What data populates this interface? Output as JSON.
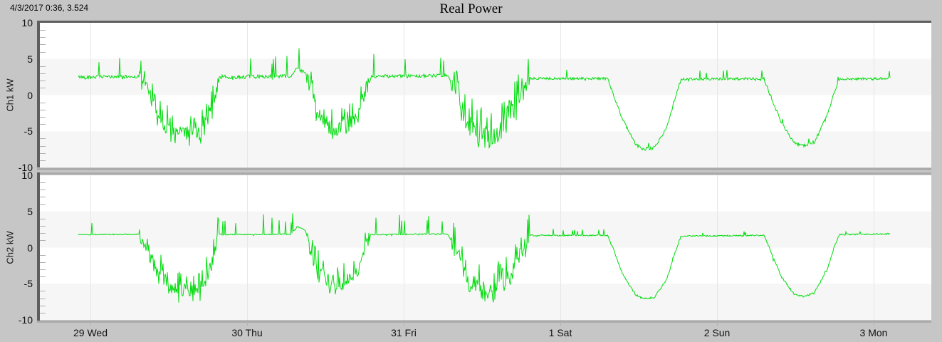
{
  "header": {
    "readout": "4/3/2017 0:36, 3.524",
    "title": "Real Power"
  },
  "colors": {
    "window_bg": "#c6c6c6",
    "plot_bg": "#ffffff",
    "band": "#f6f6f6",
    "grid": "#e6e6e6",
    "minor_tick": "#b0b0b0",
    "frame_dark": "#5e5e5e",
    "frame_light": "#ababab",
    "trace_green": "#00dc0c",
    "text": "#111111"
  },
  "xaxis": {
    "unit": "day",
    "min_day": -0.323,
    "max_day": 5.368,
    "ticks": [
      {
        "day": 0,
        "label": "29 Wed"
      },
      {
        "day": 1,
        "label": "30 Thu"
      },
      {
        "day": 2,
        "label": "31 Fri"
      },
      {
        "day": 3,
        "label": "1 Sat"
      },
      {
        "day": 4,
        "label": "2 Sun"
      },
      {
        "day": 5,
        "label": "3 Mon"
      }
    ]
  },
  "chart_data": [
    {
      "type": "line",
      "title": "Real Power",
      "ylabel": "Ch1 kW",
      "unit": "kW",
      "ylim": [
        -10,
        10
      ],
      "yticks": [
        10,
        5,
        0,
        -5,
        -10
      ],
      "yminor_step": 1,
      "grid": "bands-and-day-lines",
      "series": {
        "name": "Ch1",
        "domain_days": [
          -0.077,
          5.105
        ],
        "mean_keypoints_day_kw": [
          [
            -0.077,
            2.5
          ],
          [
            0.31,
            2.55
          ],
          [
            0.36,
            1.0
          ],
          [
            0.42,
            -2.5
          ],
          [
            0.5,
            -4.8
          ],
          [
            0.55,
            -5.4
          ],
          [
            0.7,
            -5.3
          ],
          [
            0.74,
            -4.0
          ],
          [
            0.78,
            -1.5
          ],
          [
            0.82,
            2.5
          ],
          [
            1.28,
            2.6
          ],
          [
            1.32,
            3.7
          ],
          [
            1.37,
            3.2
          ],
          [
            1.4,
            1.0
          ],
          [
            1.45,
            -2.5
          ],
          [
            1.52,
            -4.3
          ],
          [
            1.6,
            -4.6
          ],
          [
            1.66,
            -4.0
          ],
          [
            1.71,
            -2.3
          ],
          [
            1.76,
            0.8
          ],
          [
            1.79,
            2.6
          ],
          [
            2.28,
            2.7
          ],
          [
            2.33,
            0.5
          ],
          [
            2.4,
            -3.5
          ],
          [
            2.48,
            -5.3
          ],
          [
            2.58,
            -5.6
          ],
          [
            2.66,
            -4.0
          ],
          [
            2.72,
            -1.5
          ],
          [
            2.8,
            2.3
          ],
          [
            3.3,
            2.3
          ],
          [
            3.34,
            0.0
          ],
          [
            3.4,
            -3.5
          ],
          [
            3.48,
            -6.8
          ],
          [
            3.53,
            -7.5
          ],
          [
            3.6,
            -7.3
          ],
          [
            3.68,
            -4.5
          ],
          [
            3.73,
            -0.5
          ],
          [
            3.77,
            2.2
          ],
          [
            4.3,
            2.3
          ],
          [
            4.34,
            0.0
          ],
          [
            4.41,
            -3.8
          ],
          [
            4.49,
            -6.6
          ],
          [
            4.55,
            -7.0
          ],
          [
            4.62,
            -6.5
          ],
          [
            4.7,
            -3.0
          ],
          [
            4.75,
            0.5
          ],
          [
            4.78,
            2.2
          ],
          [
            5.105,
            2.3
          ]
        ],
        "noise_segments": [
          {
            "from": -0.077,
            "to": 0.31,
            "amp": 0.22,
            "p": 0.035,
            "up": 3.0,
            "dn": 0.4
          },
          {
            "from": 0.31,
            "to": 0.82,
            "amp": 1.1,
            "p": 0.18,
            "up": 3.2,
            "dn": 1.8
          },
          {
            "from": 0.82,
            "to": 1.38,
            "amp": 0.27,
            "p": 0.05,
            "up": 3.4,
            "dn": 0.5
          },
          {
            "from": 1.38,
            "to": 1.79,
            "amp": 1.1,
            "p": 0.18,
            "up": 3.0,
            "dn": 1.8
          },
          {
            "from": 1.79,
            "to": 2.3,
            "amp": 0.22,
            "p": 0.06,
            "up": 3.6,
            "dn": 0.3
          },
          {
            "from": 2.3,
            "to": 2.8,
            "amp": 1.3,
            "p": 0.22,
            "up": 4.0,
            "dn": 2.2
          },
          {
            "from": 2.8,
            "to": 3.3,
            "amp": 0.16,
            "p": 0.025,
            "up": 1.8,
            "dn": 0.3
          },
          {
            "from": 3.3,
            "to": 3.77,
            "amp": 0.22,
            "p": 0.02,
            "up": 0.8,
            "dn": 0.6
          },
          {
            "from": 3.77,
            "to": 4.3,
            "amp": 0.16,
            "p": 0.03,
            "up": 1.4,
            "dn": 0.3
          },
          {
            "from": 4.3,
            "to": 4.78,
            "amp": 0.22,
            "p": 0.02,
            "up": 0.8,
            "dn": 0.6
          },
          {
            "from": 4.78,
            "to": 5.105,
            "amp": 0.16,
            "p": 0.03,
            "up": 1.2,
            "dn": 0.3
          }
        ]
      }
    },
    {
      "type": "line",
      "title": "Real Power",
      "ylabel": "Ch2 kW",
      "unit": "kW",
      "ylim": [
        -10,
        10
      ],
      "yticks": [
        10,
        5,
        0,
        -5,
        -10
      ],
      "yminor_step": 1,
      "grid": "bands-and-day-lines",
      "series": {
        "name": "Ch2",
        "domain_days": [
          -0.077,
          5.105
        ],
        "mean_keypoints_day_kw": [
          [
            -0.077,
            1.8
          ],
          [
            0.31,
            1.85
          ],
          [
            0.36,
            0.5
          ],
          [
            0.42,
            -3.0
          ],
          [
            0.5,
            -5.2
          ],
          [
            0.56,
            -5.8
          ],
          [
            0.7,
            -5.6
          ],
          [
            0.74,
            -4.2
          ],
          [
            0.78,
            -1.8
          ],
          [
            0.82,
            1.8
          ],
          [
            1.28,
            1.85
          ],
          [
            1.32,
            2.9
          ],
          [
            1.37,
            2.4
          ],
          [
            1.4,
            0.5
          ],
          [
            1.45,
            -3.0
          ],
          [
            1.52,
            -4.7
          ],
          [
            1.6,
            -5.0
          ],
          [
            1.66,
            -4.4
          ],
          [
            1.71,
            -2.8
          ],
          [
            1.76,
            0.2
          ],
          [
            1.79,
            1.8
          ],
          [
            2.28,
            1.9
          ],
          [
            2.33,
            0.0
          ],
          [
            2.4,
            -4.0
          ],
          [
            2.48,
            -5.7
          ],
          [
            2.58,
            -6.0
          ],
          [
            2.66,
            -4.4
          ],
          [
            2.72,
            -2.0
          ],
          [
            2.8,
            1.7
          ],
          [
            3.3,
            1.7
          ],
          [
            3.34,
            -0.3
          ],
          [
            3.4,
            -3.8
          ],
          [
            3.48,
            -6.5
          ],
          [
            3.53,
            -7.1
          ],
          [
            3.6,
            -6.9
          ],
          [
            3.68,
            -4.3
          ],
          [
            3.73,
            -0.8
          ],
          [
            3.77,
            1.6
          ],
          [
            4.3,
            1.7
          ],
          [
            4.34,
            -0.3
          ],
          [
            4.41,
            -4.0
          ],
          [
            4.49,
            -6.4
          ],
          [
            4.55,
            -6.8
          ],
          [
            4.62,
            -6.3
          ],
          [
            4.7,
            -3.2
          ],
          [
            4.75,
            0.2
          ],
          [
            4.78,
            1.8
          ],
          [
            5.105,
            1.9
          ]
        ],
        "noise_segments": [
          {
            "from": -0.077,
            "to": 0.31,
            "amp": 0.07,
            "p": 0.03,
            "up": 2.8,
            "dn": 0.2
          },
          {
            "from": 0.31,
            "to": 0.82,
            "amp": 1.0,
            "p": 0.2,
            "up": 3.0,
            "dn": 1.8
          },
          {
            "from": 0.82,
            "to": 1.38,
            "amp": 0.07,
            "p": 0.04,
            "up": 3.0,
            "dn": 0.2
          },
          {
            "from": 1.38,
            "to": 1.79,
            "amp": 1.0,
            "p": 0.2,
            "up": 2.8,
            "dn": 1.8
          },
          {
            "from": 1.79,
            "to": 2.3,
            "amp": 0.07,
            "p": 0.045,
            "up": 3.2,
            "dn": 0.2
          },
          {
            "from": 2.3,
            "to": 2.8,
            "amp": 1.2,
            "p": 0.22,
            "up": 3.8,
            "dn": 2.0
          },
          {
            "from": 2.8,
            "to": 3.3,
            "amp": 0.09,
            "p": 0.03,
            "up": 0.9,
            "dn": 0.2
          },
          {
            "from": 3.3,
            "to": 3.77,
            "amp": 0.13,
            "p": 0.02,
            "up": 0.5,
            "dn": 0.8
          },
          {
            "from": 3.77,
            "to": 4.3,
            "amp": 0.09,
            "p": 0.03,
            "up": 0.7,
            "dn": 0.2
          },
          {
            "from": 4.3,
            "to": 4.78,
            "amp": 0.13,
            "p": 0.02,
            "up": 0.5,
            "dn": 0.8
          },
          {
            "from": 4.78,
            "to": 5.105,
            "amp": 0.09,
            "p": 0.03,
            "up": 0.6,
            "dn": 0.2
          }
        ]
      }
    }
  ]
}
